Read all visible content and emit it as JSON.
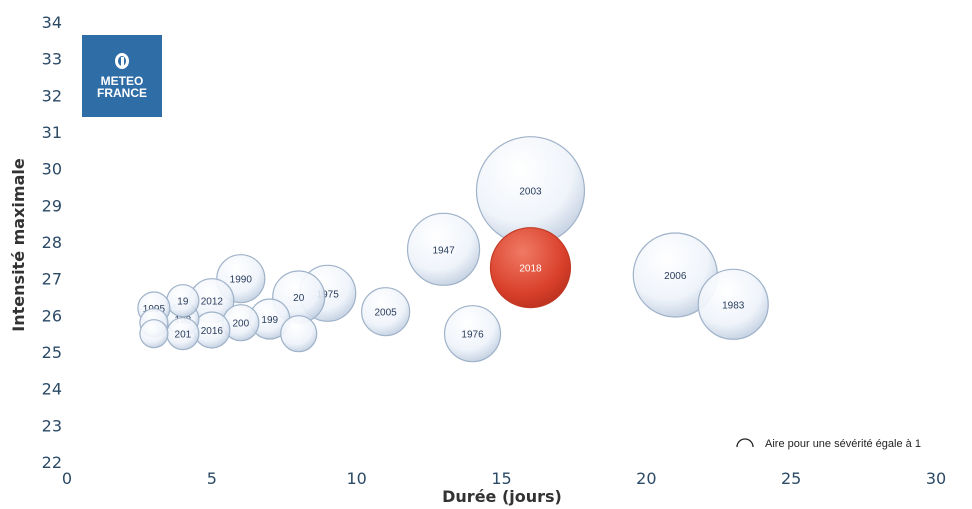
{
  "logo": {
    "line1": "METEO",
    "line2": "FRANCE"
  },
  "legend": {
    "text": "Aire pour une sévérité égale à 1"
  },
  "chart_data": {
    "type": "bubble",
    "title": "",
    "xlabel": "Durée (jours)",
    "ylabel": "Intensité maximale",
    "xlim": [
      0,
      30
    ],
    "ylim": [
      22,
      34
    ],
    "xticks": [
      0,
      5,
      10,
      15,
      20,
      25,
      30
    ],
    "yticks": [
      22,
      23,
      24,
      25,
      26,
      27,
      28,
      29,
      30,
      31,
      32,
      33,
      34
    ],
    "highlight_color": "#d9402b",
    "points": [
      {
        "label": "2003",
        "x": 16,
        "y": 29.4,
        "size": 54
      },
      {
        "label": "2018",
        "x": 16,
        "y": 27.3,
        "size": 40,
        "highlight": true
      },
      {
        "label": "1947",
        "x": 13,
        "y": 27.8,
        "size": 36
      },
      {
        "label": "2006",
        "x": 21,
        "y": 27.1,
        "size": 42
      },
      {
        "label": "1983",
        "x": 23,
        "y": 26.3,
        "size": 35
      },
      {
        "label": "1976",
        "x": 14,
        "y": 25.5,
        "size": 28
      },
      {
        "label": "2005",
        "x": 11,
        "y": 26.1,
        "size": 24
      },
      {
        "label": "1975",
        "x": 9,
        "y": 26.6,
        "size": 28
      },
      {
        "label": "20",
        "x": 8,
        "y": 26.5,
        "size": 26
      },
      {
        "label": "1990",
        "x": 6,
        "y": 27.0,
        "size": 24
      },
      {
        "label": "2012",
        "x": 5,
        "y": 26.4,
        "size": 22
      },
      {
        "label": "199",
        "x": 7,
        "y": 25.9,
        "size": 20
      },
      {
        "label": "200",
        "x": 6,
        "y": 25.8,
        "size": 18
      },
      {
        "label": "2016",
        "x": 5,
        "y": 25.6,
        "size": 18
      },
      {
        "label": "198",
        "x": 4,
        "y": 25.9,
        "size": 16
      },
      {
        "label": "201",
        "x": 4,
        "y": 25.5,
        "size": 16
      },
      {
        "label": "19",
        "x": 4,
        "y": 26.4,
        "size": 16
      },
      {
        "label": "1995",
        "x": 3,
        "y": 26.2,
        "size": 16
      },
      {
        "label": "",
        "x": 3,
        "y": 25.8,
        "size": 14
      },
      {
        "label": "",
        "x": 3,
        "y": 25.5,
        "size": 14
      },
      {
        "label": "",
        "x": 8,
        "y": 25.5,
        "size": 18
      }
    ]
  }
}
